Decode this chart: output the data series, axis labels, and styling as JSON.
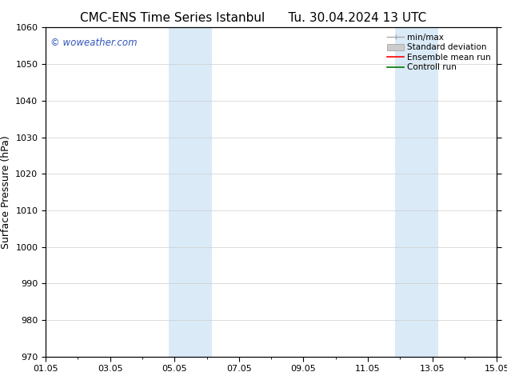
{
  "title_left": "CMC-ENS Time Series Istanbul",
  "title_right": "Tu. 30.04.2024 13 UTC",
  "ylabel": "Surface Pressure (hPa)",
  "ylim": [
    970,
    1060
  ],
  "yticks": [
    970,
    980,
    990,
    1000,
    1010,
    1020,
    1030,
    1040,
    1050,
    1060
  ],
  "xtick_labels": [
    "01.05",
    "03.05",
    "05.05",
    "07.05",
    "09.05",
    "11.05",
    "13.05",
    "15.05"
  ],
  "xtick_positions": [
    0,
    2,
    4,
    6,
    8,
    10,
    12,
    14
  ],
  "x_total_days": 14,
  "shade_bands": [
    {
      "xmin": 3.83,
      "xmax": 5.17,
      "color": "#daeaf7"
    },
    {
      "xmin": 10.83,
      "xmax": 12.17,
      "color": "#daeaf7"
    }
  ],
  "watermark_text": "© woweather.com",
  "watermark_color": "#3355bb",
  "legend_items": [
    {
      "label": "min/max",
      "color": "#aaaaaa",
      "lw": 1.0
    },
    {
      "label": "Standard deviation",
      "color": "#cccccc",
      "lw": 5
    },
    {
      "label": "Ensemble mean run",
      "color": "#ff0000",
      "lw": 1.2
    },
    {
      "label": "Controll run",
      "color": "#007700",
      "lw": 1.2
    }
  ],
  "bg_color": "#ffffff",
  "grid_color": "#cccccc",
  "title_fontsize": 11,
  "ylabel_fontsize": 9,
  "tick_fontsize": 8,
  "legend_fontsize": 7.5
}
